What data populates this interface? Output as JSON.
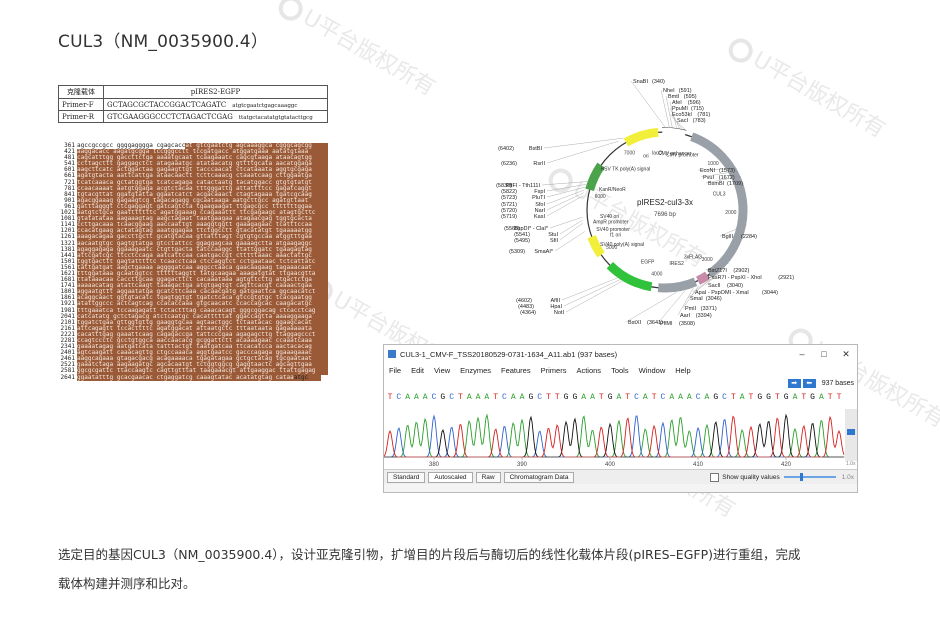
{
  "title": "CUL3（NM_0035900.4）",
  "watermark": "U平台版权所有",
  "primer_table": {
    "headers": [
      "克隆载体",
      "pIRES2-EGFP"
    ],
    "rows": [
      {
        "label": "Primer-F",
        "seq": "GCTAGCGCTACCGGACTCAGATC",
        "extra": "atgtcgaatctgagcaaaggc"
      },
      {
        "label": "Primer-R",
        "seq": "GTCGAAGGGCCCTCTAGACTCGAG",
        "extra": "ttatgctacatatgtgtatacttgcg"
      }
    ]
  },
  "sequence": {
    "first_prefix": "agccgccgcc ggggagggga cgagcacc",
    "rows": [
      {
        "n": "361",
        "s": "at gtcgaatctg agcaaaggca cgggcagcgg"
      },
      {
        "n": "421",
        "s": "aaggacacc aagatgcgga tccgggcctt tccgatgacc atggatgaaa aatatgtaaa"
      },
      {
        "n": "481",
        "s": "cagcatttgg gaccttctga aaaatgcaat tcaagaaatc cagcgtaaga ataacagtgg"
      },
      {
        "n": "541",
        "s": "ccttagcttt gaggagctct atagaaatgc atataacatg gttttgcata aacatggaga"
      },
      {
        "n": "601",
        "s": "aagcttcatc actggactaa gagaagttgt tacccaacat ctcataaata aggtgcgaga"
      },
      {
        "n": "661",
        "s": "agatgtacta aattcattga ataacaactt tcttcaaacg ctaaatcaag cttggaatga"
      },
      {
        "n": "721",
        "s": "tcatcaaaca gctatggtga tcatcagaga catactaatg tacatggacc gtgtgtatgt"
      },
      {
        "n": "781",
        "s": "ccaacaaaat aatgtggaga acgtctacaa tttgggattg attattttcc gagatcaggt"
      },
      {
        "n": "841",
        "s": "tgtacgttat ggatgtatta ggaatcatct acgacaaact ctagtagaaa tgatcgcaag"
      },
      {
        "n": "901",
        "s": "agacggaaag gagaagtcg tagacagagg cgcaataaga aatgcttgcc agatgttaat"
      },
      {
        "n": "961",
        "s": "gatttagggt ctcgaggagt gatcagtcta tgaagaagat ttgagcgcc tttttttggaa"
      },
      {
        "n": "1021",
        "s": "aatgtctgca gaatttttttc agatggaaag ccagaaattt ttcgagaagc atagtgcttc"
      },
      {
        "n": "1081",
        "s": "gtatatataa aagaaagtag aagctagaat taatgaagaa atagaacgag tggtgcacta"
      },
      {
        "n": "1141",
        "s": "ccttgacaaa tcaacggaag aaccaattgt aaaggtggtt gaaagagaac tcatttccaa"
      },
      {
        "n": "1201",
        "s": "ccacatgaag actatagtag aaatggagaa ttctggcctt gtacatatgt tgaaaaatgg"
      },
      {
        "n": "1261",
        "s": "aaagacagaa gaccttgctt gcatgtacaa gttatttagt cgtgtgccaa atggtttgaa"
      },
      {
        "n": "1321",
        "s": "aacaatgtgc gagtgtatga gtcctattcc ggaggagcaa gaaaagctta atgaagaggc"
      },
      {
        "n": "1381",
        "s": "agaggagaga ggaaagaatc ctgttgacta tatccaaggc ttattggatc tgaagagtag"
      },
      {
        "n": "1441",
        "s": "attcgatcgc ttcctccaga aatcattcaa caatgaccgt ctttttaaac aaactattgc"
      },
      {
        "n": "1501",
        "s": "tggtgacttt gagtatttttc tcaacctcaa ctccaggtct cctgaataac tctcattatc"
      },
      {
        "n": "1561",
        "s": "tattgatgat aagctgaaaa aggggatcaa aggcctaaca gaacaagaag tagaaacaat"
      },
      {
        "n": "1621",
        "s": "tttggataaa gcaatggtcc ttttttaggtt tatgcaagaa aaagatgtat ttgaacgtta"
      },
      {
        "n": "1681",
        "s": "ttataaacaa caccttgcaa ggagacttct cacaaataaa agtgttcttg atgactctga"
      },
      {
        "n": "1741",
        "s": "aaaaacatag atattcaagt taaagactga atgtgagtgt cagttcacgt caaaactgaa"
      },
      {
        "n": "1801",
        "s": "aggaatgttt aggaatatga gcatcttcaaa cacaacgatg gatgaattca ggcaacatct"
      },
      {
        "n": "1861",
        "s": "acaggcaact ggtgtacatc tgagtggtgt tgatctcaca gtccgtgtgc tcacgaatgg"
      },
      {
        "n": "1921",
        "s": "atattggccc actcagtcag ccacaccaaa gtgcaacatc ccaccagcac caagacatgc"
      },
      {
        "n": "1981",
        "s": "tttgaaatca tccaagagatt tctactttag caaacacagt gggcggacag ctcacctcag"
      },
      {
        "n": "2041",
        "s": "catcatatg gctctagacg atctcaatgc cacatttttat ggaccagtta aaaaggaaga"
      },
      {
        "n": "2101",
        "s": "tggatctgaa gttggtgttg gaaggtgcaa agtaactggc tctaatacac ggaagcacat"
      },
      {
        "n": "2161",
        "s": "attcagagtt tccacttttc agatggacat attaatgctc tttaataata gagaaaaata"
      },
      {
        "n": "2221",
        "s": "cacatttgag gaaattcaag cagagaccga tattcccgaa agagagcttg ttaggagccct"
      },
      {
        "n": "2281",
        "s": "ccagtccctc gcctgtggca aaccaacacg gcggattctt acaaaagaac ccaaatcaaa"
      },
      {
        "n": "2341",
        "s": "gaaaatagag aatgatcata tatttactgt taatgatcaa ttcacatcca aactacacag"
      },
      {
        "n": "2401",
        "s": "agtcaagatt caaacagttg ctgccaaaca aggtgaatcc gacccagaga ggaaagaaac"
      },
      {
        "n": "2461",
        "s": "aaggcagaaa gtagacgacg acagaaaaca tgagatagaa gctgctatag tgcgaataat"
      },
      {
        "n": "2521",
        "s": "gaaatctaga aagaagatgc agcacaatgt tctggtggcg gaggtaactc agcagttgaa"
      },
      {
        "n": "2581",
        "s": "ggcgcgattc ttaccaagtc cagttgtttat taagaaacgt attgaaggac ttattgagag"
      },
      {
        "n": "2641",
        "s": "ggaatatttg gcacgaacac ctgaggatcg caaagtatac acatatgtag cataa",
        "tail": "atgc"
      }
    ]
  },
  "plasmid": {
    "name": "pIRES2-cul3-3x",
    "size": "7696 bp",
    "inner_labels": [
      "CMV enhancer",
      "CMV promoter",
      "CUL3",
      "3xFLAG",
      "IRES2",
      "EGFP",
      "SV40 poly(A) signal",
      "f1 ori",
      "SV40 promoter",
      "AmpR promoter",
      "SV40 ori",
      "KanR/NeoR",
      "HSV TK poly(A) signal",
      "ori",
      "lacO"
    ],
    "ticks": [
      "1000",
      "2000",
      "3000",
      "4000",
      "5000",
      "6000",
      "7000"
    ],
    "sites_right": [
      {
        "name": "SnaBI",
        "pos": "(340)"
      },
      {
        "name": "NheI",
        "pos": "(591)"
      },
      {
        "name": "BmtI",
        "pos": "(595)"
      },
      {
        "name": "AfeI",
        "pos": "(596)"
      },
      {
        "name": "PpuMI",
        "pos": "(715)"
      },
      {
        "name": "Eco53kI",
        "pos": "(781)"
      },
      {
        "name": "SacI",
        "pos": "(783)"
      },
      {
        "name": "EcoNI",
        "pos": "(1573)"
      },
      {
        "name": "PvuI",
        "pos": "(1672)"
      },
      {
        "name": "BsmBI",
        "pos": "(1709)"
      },
      {
        "name": "BglII",
        "pos": "(2284)"
      },
      {
        "name": "BstZ17I",
        "pos": "(2902)"
      },
      {
        "name": "PasR7I - PspXI - XhoI",
        "pos": "(2921)"
      },
      {
        "name": "SacII",
        "pos": "(3040)"
      },
      {
        "name": "ApaI - PspOMI - XmaI",
        "pos": "(3044)"
      },
      {
        "name": "SmaI",
        "pos": "(3046)"
      },
      {
        "name": "PmlI",
        "pos": "(3371)"
      },
      {
        "name": "AarI",
        "pos": "(3394)"
      },
      {
        "name": "PflMI",
        "pos": "(3508)"
      },
      {
        "name": "BstXI",
        "pos": "(3641)"
      }
    ],
    "sites_left": [
      {
        "name": "BstBI",
        "pos": "(6402)"
      },
      {
        "name": "RsrII",
        "pos": "(6236)"
      },
      {
        "name": "PflFI - Tth111I",
        "pos": "(5838)"
      },
      {
        "name": "FspI",
        "pos": "(5822)"
      },
      {
        "name": "PluTI",
        "pos": "(5723)"
      },
      {
        "name": "SfoI",
        "pos": "(5721)"
      },
      {
        "name": "NarI",
        "pos": "(5720)"
      },
      {
        "name": "KasI",
        "pos": "(5719)"
      },
      {
        "name": "BspDI* - ClaI*",
        "pos": "(5560)"
      },
      {
        "name": "StuI",
        "pos": "(5541)"
      },
      {
        "name": "SfiI",
        "pos": "(5495)"
      },
      {
        "name": "SmaAI*",
        "pos": "(5309)"
      },
      {
        "name": "AflII",
        "pos": "(4602)"
      },
      {
        "name": "HpaI",
        "pos": "(4483)"
      },
      {
        "name": "NotI",
        "pos": "(4364)"
      }
    ]
  },
  "chromatogram": {
    "window_title": "CUL3-1_CMV-F_TSS20180529-0731-1634_A11.ab1 (937 bases)",
    "menu": [
      "File",
      "Edit",
      "View",
      "Enzymes",
      "Features",
      "Primers",
      "Actions",
      "Tools",
      "Window",
      "Help"
    ],
    "base_count": "937 bases",
    "bases": "TCAAACGCTAAATCAAGCTTGGAATGATCATCAAACAGCTATGGTGATGATT",
    "positions": [
      "380",
      "390",
      "400",
      "410",
      "420"
    ],
    "tabs": [
      "Standard",
      "Autoscaled",
      "Raw",
      "Chromatogram Data"
    ],
    "show_quality": "Show quality values",
    "zoom": "1.0x",
    "colors": {
      "A": "#2aa02a",
      "C": "#2f62d0",
      "G": "#111111",
      "T": "#d62020"
    }
  },
  "description_lines": [
    "选定目的基因CUL3（NM_0035900.4），设计亚克隆引物，扩增目的片段后与酶切后的线性化载体片段(pIRES–EGFP)进行重组，完成",
    "载体构建并测序和比对。"
  ]
}
